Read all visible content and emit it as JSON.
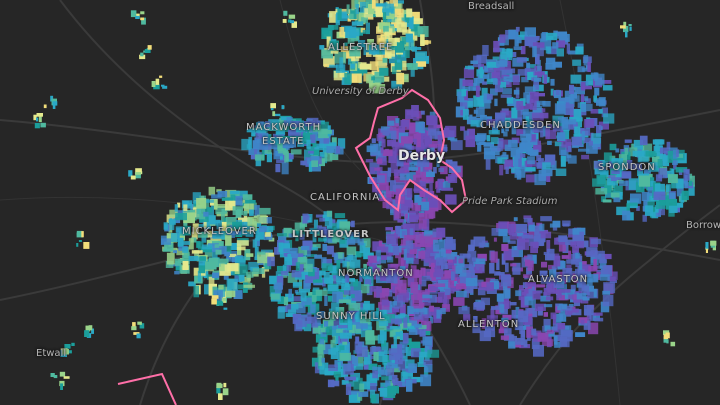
{
  "map": {
    "background": "#262626",
    "road_color": "#3a3a3a",
    "boundary_color": "#ff6fa8",
    "palette": [
      "#1b9e9b",
      "#2aa8c6",
      "#3f86c9",
      "#5569c4",
      "#6a4fb8",
      "#8a46b0",
      "#4fb99f",
      "#9ad48a",
      "#e4e98d",
      "#f2dd7a"
    ]
  },
  "labels": {
    "city": "Derby",
    "breadsall": "Breadsall",
    "allestree": "ALLESTREE",
    "university": "University of Derby",
    "mackworth": "MACKWORTH",
    "estate": "ESTATE",
    "chaddesden": "CHADDESDEN",
    "spondon": "SPONDON",
    "borrowash": "Borrow",
    "pride_park": "Pride Park Stadium",
    "california": "CALIFORNIA",
    "mickleover": "MICKLEOVER",
    "littleover": "LITTLEOVER",
    "normanton": "NORMANTON",
    "alvaston": "ALVASTON",
    "sunny_hill": "SUNNY HILL",
    "allenton": "ALLENTON",
    "etwall": "Etwall"
  },
  "clusters": [
    {
      "name": "allestree",
      "shade": "cyan-yellow"
    },
    {
      "name": "mackworth",
      "shade": "teal-blue"
    },
    {
      "name": "city-centre",
      "shade": "purple"
    },
    {
      "name": "chaddesden",
      "shade": "blue"
    },
    {
      "name": "spondon",
      "shade": "teal-blue"
    },
    {
      "name": "mickleover",
      "shade": "teal-yellow"
    },
    {
      "name": "littleover",
      "shade": "teal-blue"
    },
    {
      "name": "normanton",
      "shade": "purple"
    },
    {
      "name": "alvaston",
      "shade": "blue-purple"
    },
    {
      "name": "sunny-hill",
      "shade": "teal-blue"
    }
  ]
}
